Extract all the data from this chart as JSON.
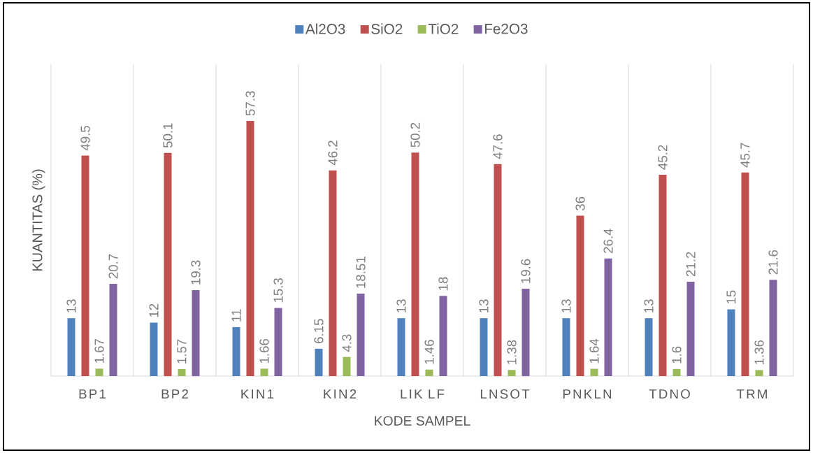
{
  "chart_data": {
    "type": "bar",
    "xlabel": "KODE SAMPEL",
    "ylabel": "KUANTITAS (%)",
    "categories": [
      "BP1",
      "BP2",
      "KIN1",
      "KIN2",
      "LIK LF",
      "LNSOT",
      "PNKLN",
      "TDNO",
      "TRM"
    ],
    "series": [
      {
        "name": "Al2O3",
        "color": "#4f81bd",
        "values": [
          13,
          12,
          11,
          6.15,
          13,
          13,
          13,
          13,
          15
        ]
      },
      {
        "name": "SiO2",
        "color": "#c0504d",
        "values": [
          49.5,
          50.1,
          57.3,
          46.2,
          50.2,
          47.6,
          36,
          45.2,
          45.7
        ]
      },
      {
        "name": "TiO2",
        "color": "#9bbb59",
        "values": [
          1.67,
          1.57,
          1.66,
          4.3,
          1.46,
          1.38,
          1.64,
          1.6,
          1.36
        ]
      },
      {
        "name": "Fe2O3",
        "color": "#8064a2",
        "values": [
          20.7,
          19.3,
          15.3,
          18.51,
          18,
          19.6,
          26.4,
          21.2,
          21.6
        ]
      }
    ],
    "data_labels": true,
    "legend": "top",
    "grid": "x",
    "tick_labels": "x"
  }
}
